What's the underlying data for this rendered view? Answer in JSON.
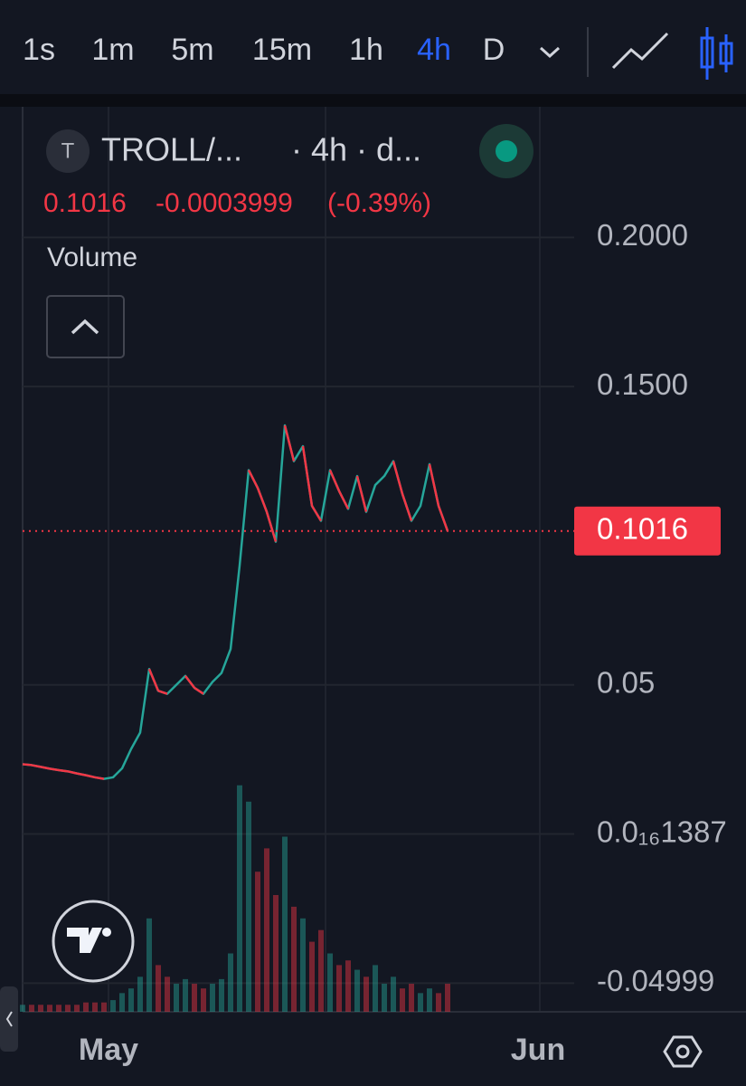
{
  "toolbar": {
    "intervals": [
      "1s",
      "1m",
      "5m",
      "15m",
      "1h",
      "4h",
      "D"
    ],
    "active": "4h"
  },
  "legend": {
    "symbol_icon": "T",
    "symbol": "TROLL/...",
    "interval": "· 4h · d...",
    "change": "-0.0003999",
    "change_pct": "(-0.39%)",
    "volume_label": "Volume"
  },
  "chart_data": {
    "type": "line",
    "x_labels": [
      "May",
      "Jun"
    ],
    "values": [
      0.0234,
      0.0231,
      0.0225,
      0.0219,
      0.0214,
      0.021,
      0.0203,
      0.0197,
      0.019,
      0.0185,
      0.019,
      0.022,
      0.0285,
      0.034,
      0.0553,
      0.048,
      0.047,
      0.05,
      0.053,
      0.049,
      0.047,
      0.051,
      0.054,
      0.062,
      0.09,
      0.122,
      0.116,
      0.108,
      0.098,
      0.137,
      0.125,
      0.13,
      0.11,
      0.105,
      0.122,
      0.115,
      0.109,
      0.12,
      0.108,
      0.117,
      0.12,
      0.125,
      0.114,
      0.105,
      0.11,
      0.124,
      0.11,
      0.1016
    ],
    "up_color": "#26a69a",
    "down_color": "#f23645",
    "volume": [
      3,
      3,
      3,
      3,
      3,
      3,
      3,
      4,
      4,
      4,
      5,
      8,
      10,
      15,
      40,
      20,
      15,
      12,
      14,
      12,
      10,
      12,
      14,
      25,
      97,
      90,
      60,
      70,
      50,
      75,
      45,
      40,
      30,
      35,
      25,
      20,
      22,
      18,
      15,
      20,
      12,
      15,
      10,
      12,
      8,
      10,
      8,
      12
    ],
    "volume_lim": [
      0,
      100
    ],
    "last_price": 0.1016,
    "ylim": [
      -0.0596,
      0.2438
    ],
    "yticks": [
      -0.04999,
      {
        "value": 1.387e-17,
        "label": "0.0₁₆1387"
      },
      0.05,
      {
        "value": 0.15,
        "label": "0.1500"
      },
      {
        "value": 0.2,
        "label": "0.2000"
      }
    ],
    "grid": true
  }
}
